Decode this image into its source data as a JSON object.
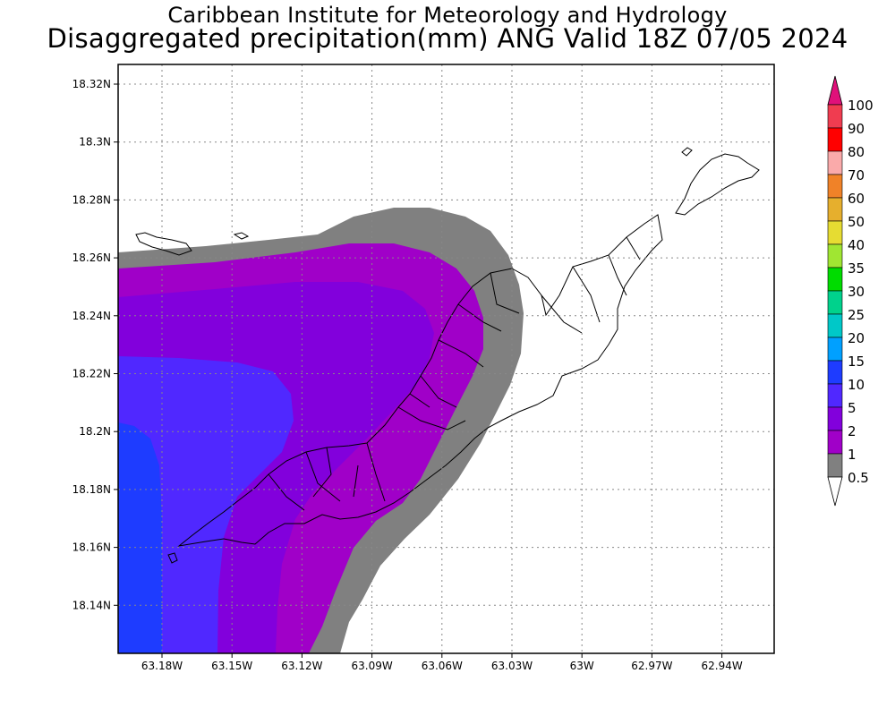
{
  "title": "Caribbean Institute for Meteorology and Hydrology",
  "subtitle": "Disaggregated precipitation(mm) ANG Valid 18Z 07/05 2024",
  "map": {
    "lat_ticks": [
      "18.32N",
      "18.3N",
      "18.28N",
      "18.26N",
      "18.24N",
      "18.22N",
      "18.2N",
      "18.18N",
      "18.16N",
      "18.14N"
    ],
    "lon_ticks": [
      "63.18W",
      "63.15W",
      "63.12W",
      "63.09W",
      "63.06W",
      "63.03W",
      "63W",
      "62.97W",
      "62.94W"
    ],
    "grid": true
  },
  "legend": {
    "levels": [
      {
        "label": "0.5",
        "color": "#ffffff"
      },
      {
        "label": "1",
        "color": "#808080"
      },
      {
        "label": "2",
        "color": "#a000c8"
      },
      {
        "label": "5",
        "color": "#8200dc"
      },
      {
        "label": "10",
        "color": "#5028ff"
      },
      {
        "label": "15",
        "color": "#1e3cff"
      },
      {
        "label": "20",
        "color": "#00a0ff"
      },
      {
        "label": "25",
        "color": "#00c8c8"
      },
      {
        "label": "30",
        "color": "#00d28c"
      },
      {
        "label": "35",
        "color": "#00dc00"
      },
      {
        "label": "40",
        "color": "#a0e632"
      },
      {
        "label": "50",
        "color": "#e6dc32"
      },
      {
        "label": "60",
        "color": "#e6af2d"
      },
      {
        "label": "70",
        "color": "#f08228"
      },
      {
        "label": "80",
        "color": "#faaaaa"
      },
      {
        "label": "90",
        "color": "#ff0000"
      },
      {
        "label": "100",
        "color": "#f03c50"
      }
    ],
    "top_arrow_color": "#e0107a"
  }
}
